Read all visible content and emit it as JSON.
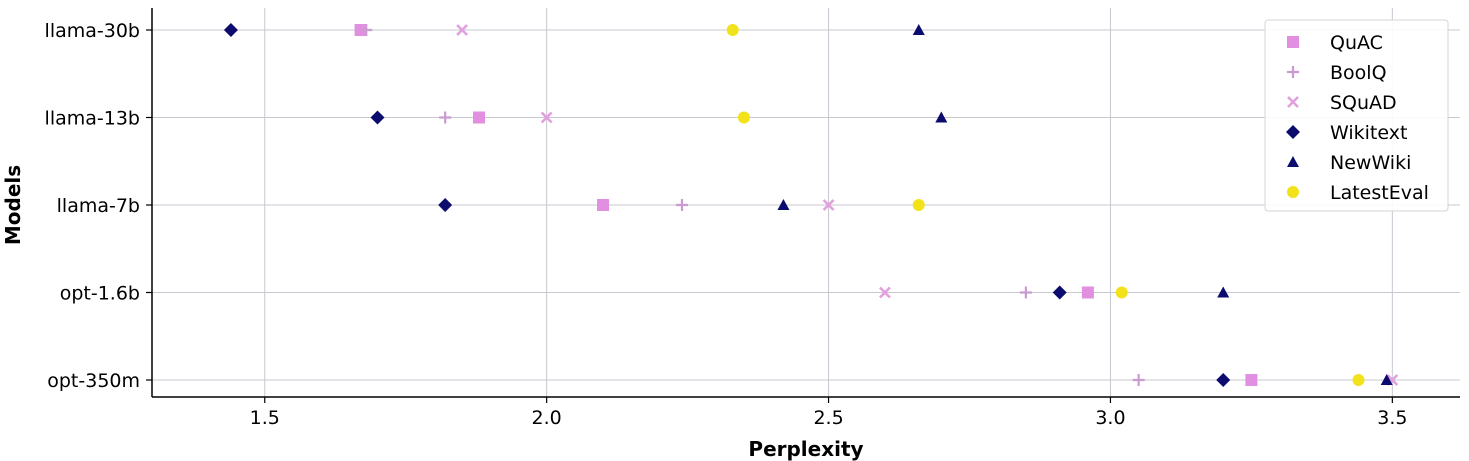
{
  "chart_data": {
    "type": "scatter",
    "title": "",
    "xlabel": "Perplexity",
    "ylabel": "Models",
    "categories": [
      "llama-30b",
      "llama-13b",
      "llama-7b",
      "opt-1.6b",
      "opt-350m"
    ],
    "xlim": [
      1.3,
      3.62
    ],
    "xticks": [
      "1.5",
      "2.0",
      "2.5",
      "3.0",
      "3.5"
    ],
    "grid": true,
    "legend_position": "top-right",
    "series": [
      {
        "name": "QuAC",
        "marker": "square",
        "color": "#e18fe0",
        "values": [
          1.67,
          1.88,
          2.1,
          2.96,
          3.25
        ]
      },
      {
        "name": "BoolQ",
        "marker": "plus",
        "color": "#c99bd1",
        "values": [
          1.68,
          1.82,
          2.24,
          2.85,
          3.05
        ]
      },
      {
        "name": "SQuAD",
        "marker": "x",
        "color": "#e2a0dd",
        "values": [
          1.85,
          2.0,
          2.5,
          2.6,
          3.5
        ]
      },
      {
        "name": "Wikitext",
        "marker": "diamond",
        "color": "#0c0c6e",
        "values": [
          1.44,
          1.7,
          1.82,
          2.91,
          3.2
        ]
      },
      {
        "name": "NewWiki",
        "marker": "triangle",
        "color": "#0c0c6e",
        "values": [
          2.66,
          2.7,
          2.42,
          3.2,
          3.49
        ]
      },
      {
        "name": "LatestEval",
        "marker": "circle",
        "color": "#f2e21a",
        "values": [
          2.33,
          2.35,
          2.66,
          3.02,
          3.44
        ]
      }
    ]
  }
}
